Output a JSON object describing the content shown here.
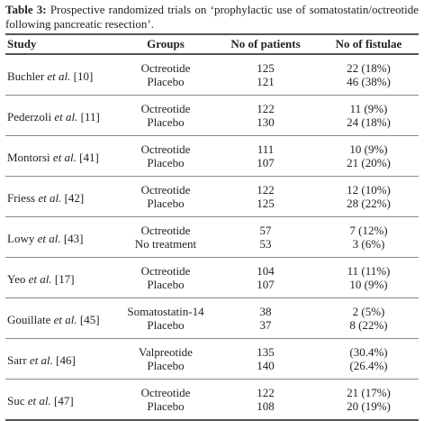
{
  "caption": {
    "label": "Table 3:",
    "text": "Prospective randomized trials on ‘prophylactic use of somatostatin/octreotide following pancreatic resection’."
  },
  "table": {
    "headers": [
      "Study",
      "Groups",
      "No of patients",
      "No of fistulae"
    ],
    "rows": [
      {
        "author": "Buchler",
        "etal": "et al.",
        "ref": "[10]",
        "arms": [
          {
            "group": "Octreotide",
            "patients": 125,
            "fistulae": "22 (18%)"
          },
          {
            "group": "Placebo",
            "patients": 121,
            "fistulae": "46 (38%)"
          }
        ]
      },
      {
        "author": "Pederzoli",
        "etal": "et al.",
        "ref": "[11]",
        "arms": [
          {
            "group": "Octreotide",
            "patients": 122,
            "fistulae": "11 (9%)"
          },
          {
            "group": "Placebo",
            "patients": 130,
            "fistulae": "24 (18%)"
          }
        ]
      },
      {
        "author": "Montorsi",
        "etal": "et al.",
        "ref": "[41]",
        "arms": [
          {
            "group": "Octreotide",
            "patients": 111,
            "fistulae": "10 (9%)"
          },
          {
            "group": "Placebo",
            "patients": 107,
            "fistulae": "21 (20%)"
          }
        ]
      },
      {
        "author": "Friess",
        "etal": "et al.",
        "ref": "[42]",
        "arms": [
          {
            "group": "Octreotide",
            "patients": 122,
            "fistulae": "12 (10%)"
          },
          {
            "group": "Placebo",
            "patients": 125,
            "fistulae": "28 (22%)"
          }
        ]
      },
      {
        "author": "Lowy",
        "etal": "et al.",
        "ref": "[43]",
        "arms": [
          {
            "group": "Octreotide",
            "patients": 57,
            "fistulae": "7 (12%)"
          },
          {
            "group": "No treatment",
            "patients": 53,
            "fistulae": "3 (6%)"
          }
        ]
      },
      {
        "author": "Yeo",
        "etal": "et al.",
        "ref": "[17]",
        "arms": [
          {
            "group": "Octreotide",
            "patients": 104,
            "fistulae": "11 (11%)"
          },
          {
            "group": "Placebo",
            "patients": 107,
            "fistulae": "10 (9%)"
          }
        ]
      },
      {
        "author": "Gouillate",
        "etal": "et al.",
        "ref": "[45]",
        "arms": [
          {
            "group": "Somatostatin-14",
            "patients": 38,
            "fistulae": "2 (5%)"
          },
          {
            "group": "Placebo",
            "patients": 37,
            "fistulae": "8 (22%)"
          }
        ]
      },
      {
        "author": "Sarr",
        "etal": "et al.",
        "ref": "[46]",
        "arms": [
          {
            "group": "Valpreotide",
            "patients": 135,
            "fistulae": "(30.4%)"
          },
          {
            "group": "Placebo",
            "patients": 140,
            "fistulae": "(26.4%)"
          }
        ]
      },
      {
        "author": "Suc",
        "etal": "et al.",
        "ref": "[47]",
        "arms": [
          {
            "group": "Octreotide",
            "patients": 122,
            "fistulae": "21 (17%)"
          },
          {
            "group": "Placebo",
            "patients": 108,
            "fistulae": "20 (19%)"
          }
        ]
      }
    ]
  }
}
